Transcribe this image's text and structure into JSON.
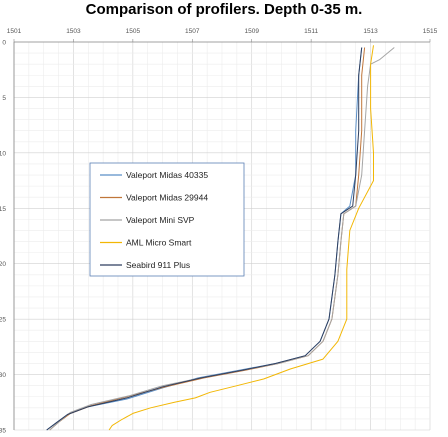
{
  "chart_data": {
    "type": "line",
    "title": "Comparison of profilers. Depth 0-35 m.",
    "xlabel": "",
    "ylabel": "",
    "xlim": [
      1501,
      1515
    ],
    "ylim": [
      0,
      35
    ],
    "y_inverted": true,
    "x_axis_position": "top",
    "grid": true,
    "x_ticks": [
      "1501",
      "1503",
      "1505",
      "1507",
      "1509",
      "1511",
      "1513",
      "1515"
    ],
    "y_ticks": [
      "0",
      "5",
      "10",
      "15",
      "20",
      "25",
      "30",
      "35"
    ],
    "legend_position": "center-left",
    "series": [
      {
        "name": "Valeport Midas 40335",
        "color": "#5b8fc7",
        "points": [
          [
            1512.7,
            0.5
          ],
          [
            1512.6,
            3
          ],
          [
            1512.5,
            8
          ],
          [
            1512.5,
            12
          ],
          [
            1512.3,
            14.8
          ],
          [
            1512.0,
            15.5
          ],
          [
            1511.9,
            18
          ],
          [
            1511.8,
            21
          ],
          [
            1511.6,
            25
          ],
          [
            1511.3,
            27
          ],
          [
            1510.8,
            28.3
          ],
          [
            1509.8,
            29
          ],
          [
            1508.6,
            29.6
          ],
          [
            1507.2,
            30.3
          ],
          [
            1506.0,
            31.2
          ],
          [
            1504.8,
            32.2
          ],
          [
            1503.5,
            32.9
          ],
          [
            1502.8,
            33.6
          ],
          [
            1502.4,
            34.4
          ],
          [
            1502.1,
            35
          ]
        ]
      },
      {
        "name": "Valeport Midas 29944",
        "color": "#c0763a",
        "points": [
          [
            1512.8,
            0.5
          ],
          [
            1512.7,
            3
          ],
          [
            1512.7,
            8
          ],
          [
            1512.6,
            12
          ],
          [
            1512.5,
            14.8
          ],
          [
            1512.1,
            15.5
          ],
          [
            1512.0,
            18
          ],
          [
            1511.9,
            21
          ],
          [
            1511.7,
            25
          ],
          [
            1511.4,
            27
          ],
          [
            1510.9,
            28.3
          ],
          [
            1509.9,
            29
          ],
          [
            1508.8,
            29.6
          ],
          [
            1507.4,
            30.3
          ],
          [
            1506.1,
            31.1
          ],
          [
            1504.8,
            32.0
          ],
          [
            1503.6,
            32.8
          ],
          [
            1502.9,
            33.5
          ],
          [
            1502.5,
            34.3
          ],
          [
            1502.2,
            35
          ]
        ]
      },
      {
        "name": "Valeport Mini SVP",
        "color": "#a5a5a5",
        "points": [
          [
            1513.8,
            0.5
          ],
          [
            1513.3,
            1.6
          ],
          [
            1513.0,
            2
          ],
          [
            1512.9,
            4
          ],
          [
            1512.8,
            8
          ],
          [
            1512.7,
            12
          ],
          [
            1512.5,
            14.8
          ],
          [
            1512.1,
            15.5
          ],
          [
            1512.0,
            18
          ],
          [
            1511.9,
            21
          ],
          [
            1511.7,
            25
          ],
          [
            1511.4,
            27
          ],
          [
            1510.9,
            28.3
          ],
          [
            1509.9,
            29
          ],
          [
            1508.7,
            29.6
          ],
          [
            1507.3,
            30.3
          ],
          [
            1506.0,
            31.0
          ],
          [
            1504.9,
            31.9
          ],
          [
            1503.6,
            32.7
          ],
          [
            1502.9,
            33.4
          ],
          [
            1502.5,
            34.3
          ],
          [
            1502.2,
            35
          ]
        ]
      },
      {
        "name": "AML Micro Smart",
        "color": "#f2b705",
        "points": [
          [
            1513.1,
            0.3
          ],
          [
            1513.0,
            2
          ],
          [
            1513.0,
            6
          ],
          [
            1513.1,
            10
          ],
          [
            1513.1,
            12.5
          ],
          [
            1512.6,
            15
          ],
          [
            1512.3,
            17
          ],
          [
            1512.2,
            20.5
          ],
          [
            1512.2,
            22.5
          ],
          [
            1512.2,
            25
          ],
          [
            1511.9,
            27
          ],
          [
            1511.4,
            28.6
          ],
          [
            1510.3,
            29.5
          ],
          [
            1509.4,
            30.4
          ],
          [
            1508.5,
            31.0
          ],
          [
            1507.6,
            31.6
          ],
          [
            1507.1,
            32.1
          ],
          [
            1506.4,
            32.5
          ],
          [
            1505.6,
            33
          ],
          [
            1505.0,
            33.5
          ],
          [
            1504.6,
            34.1
          ],
          [
            1504.3,
            34.6
          ],
          [
            1504.2,
            35
          ]
        ]
      },
      {
        "name": "Seabird 911 Plus",
        "color": "#2f3f5f",
        "points": [
          [
            1512.7,
            0.5
          ],
          [
            1512.6,
            3
          ],
          [
            1512.6,
            8
          ],
          [
            1512.5,
            12
          ],
          [
            1512.4,
            14.8
          ],
          [
            1512.0,
            15.5
          ],
          [
            1511.9,
            18
          ],
          [
            1511.8,
            21
          ],
          [
            1511.6,
            25
          ],
          [
            1511.3,
            27
          ],
          [
            1510.8,
            28.3
          ],
          [
            1509.8,
            29
          ],
          [
            1508.7,
            29.6
          ],
          [
            1507.3,
            30.3
          ],
          [
            1506.0,
            31.1
          ],
          [
            1504.8,
            32.1
          ],
          [
            1503.5,
            32.9
          ],
          [
            1502.8,
            33.6
          ],
          [
            1502.4,
            34.4
          ],
          [
            1502.1,
            35
          ]
        ]
      }
    ]
  }
}
